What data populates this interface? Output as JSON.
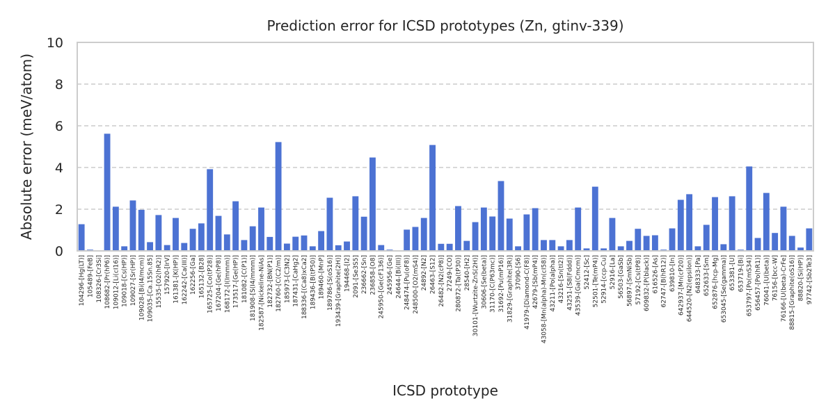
{
  "chart_data": {
    "type": "bar",
    "title": "Prediction error for ICSD prototypes (Zn, gtinv-339)",
    "xlabel": "ICSD prototype",
    "ylabel": "Absolute error (meV/atom)",
    "ylim": [
      0,
      10
    ],
    "yticks": [
      0,
      2,
      4,
      6,
      8,
      10
    ],
    "grid": "y-dashed",
    "bar_color": "#4c72d3",
    "categories": [
      "104296-[Hg(LT)]",
      "105489-[FeB]",
      "108326-[Cr3Si]",
      "108682-[Pr(hP6)]",
      "109012-[Li(cI16)]",
      "109018-[Cs(HP)]",
      "109027-[Sr(HP)]",
      "109028-[Bi(I4/mcm)]",
      "109035-[Ca.15Sn.85]",
      "15535-[O2(hR2)]",
      "157920-[IrV]",
      "161381-[K(HP)]",
      "162242-[Ca(III)]",
      "162256-[Ga]",
      "165132-[B28]",
      "165725-[Co(tP28)]",
      "167204-[Ge(hP8)]",
      "168172-[I(Immm)]",
      "173517-[Ge(HP)]",
      "181082-[C(P1)]",
      "181908-[S(I4/mmm)]",
      "182587-[Nickeline-NiAs]",
      "182732-[BN(P1)]",
      "182760-[C(C2/m)]",
      "185973-[C3N2]",
      "187431-[CaHg2]",
      "188336-[(Ca8)xCa2]",
      "189436-[B(tP50)]",
      "189460-[MnP]",
      "189786-[S(oS16)]",
      "193439-[Graphite(2H)]",
      "194468-[I2]",
      "2091-[Se3S5]",
      "236662-[Sn]",
      "236858-[O8]",
      "245950-[Ge(cF136)]",
      "245956-[Ge]",
      "24644-[Bi(III)]",
      "248474-[Pu(oF8)]",
      "248500-[O2(mS4)]",
      "24892-[N2]",
      "26463-[S12]",
      "26482-[N2(cP8)]",
      "27249-[CO]",
      "280872-[Ta(tP30)]",
      "28540-[H2]",
      "30101-[Wurtzite-ZnS(2H)]",
      "30606-[Se(beta)]",
      "31170-[C(P63mc)]",
      "31692-[Pu(mP16)]",
      "31829-[Graphite(3R)]",
      "37090-[S6]",
      "41979-[Diamond-C(F8)]",
      "42679-[Sb(mP4)]",
      "43058-[Mn(alpha)-Mn(cI58)]",
      "43211-[Po(alpha)]",
      "43216-[Sn(tI2)]",
      "43251-[S8(Fddd)]",
      "43539-[Ga(Cmcm)]",
      "52412-[Sc]",
      "52501-[Te(mP4)]",
      "52914-[ccp-Cu]",
      "52916-[La]",
      "56503-[GaSb]",
      "56897-[SmNiSb]",
      "57192-[Cs(tP8)]",
      "609832-[P(black)]",
      "616526-[As]",
      "62747-[B(hR12)]",
      "639810-[In]",
      "642937-[Mn(cP20)]",
      "644520-[N2(epsilon)]",
      "648333-[Pa]",
      "652633-[Sm]",
      "652876-[hcp-Mg]",
      "653045-[Se(gamma)]",
      "653381-[U]",
      "653719-[Bi]",
      "653797-[Po(mS34)]",
      "656457-[Po(hR1)]",
      "76041-[U(beta)]",
      "76156-[bcc-W]",
      "76166-[U(beta)-CrFe]",
      "88815-[Graphite(oS16)]",
      "88820-[Si(HP)]",
      "97742-[Sb2Te3]"
    ],
    "values": [
      1.28,
      0.06,
      0.0,
      5.62,
      2.12,
      0.22,
      2.42,
      1.97,
      0.42,
      1.72,
      0.28,
      1.58,
      0.38,
      1.06,
      1.32,
      3.92,
      1.68,
      0.79,
      2.38,
      0.52,
      1.18,
      2.08,
      0.67,
      5.22,
      0.35,
      0.68,
      0.74,
      0.22,
      0.95,
      2.55,
      0.27,
      0.45,
      2.62,
      1.64,
      4.48,
      0.28,
      0.06,
      0.0,
      1.02,
      1.15,
      1.58,
      5.08,
      0.34,
      0.34,
      2.15,
      0.48,
      1.38,
      2.08,
      1.65,
      3.35,
      1.55,
      0.22,
      1.75,
      2.05,
      0.52,
      0.52,
      0.22,
      0.52,
      2.08,
      0.12,
      3.08,
      0.12,
      1.58,
      0.22,
      0.48,
      1.06,
      0.72,
      0.75,
      0.06,
      1.08,
      2.45,
      2.72,
      0.22,
      1.25,
      2.58,
      0.32,
      2.62,
      0.06,
      4.05,
      0.62,
      2.78,
      0.86,
      2.12,
      0.72,
      0.16,
      1.08
    ]
  }
}
